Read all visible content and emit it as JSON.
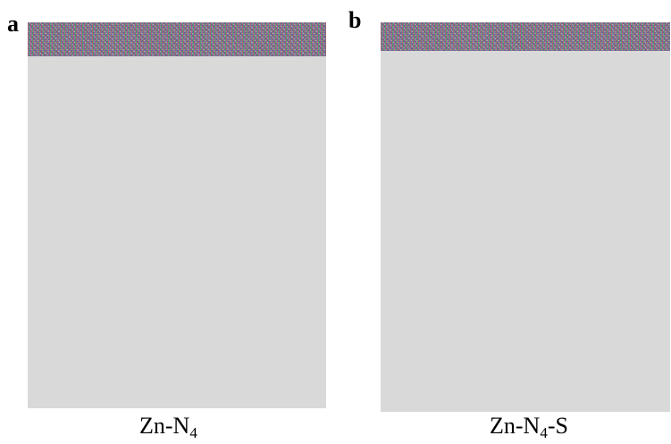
{
  "panels": [
    {
      "letter": "a",
      "caption": {
        "base": "Zn-N",
        "subscript": "4",
        "suffix": ""
      },
      "placeholder_color": "#d9d9d9"
    },
    {
      "letter": "b",
      "caption": {
        "base": "Zn-N",
        "subscript": "4",
        "suffix": "-S"
      },
      "placeholder_color": "#d9d9d9"
    }
  ]
}
